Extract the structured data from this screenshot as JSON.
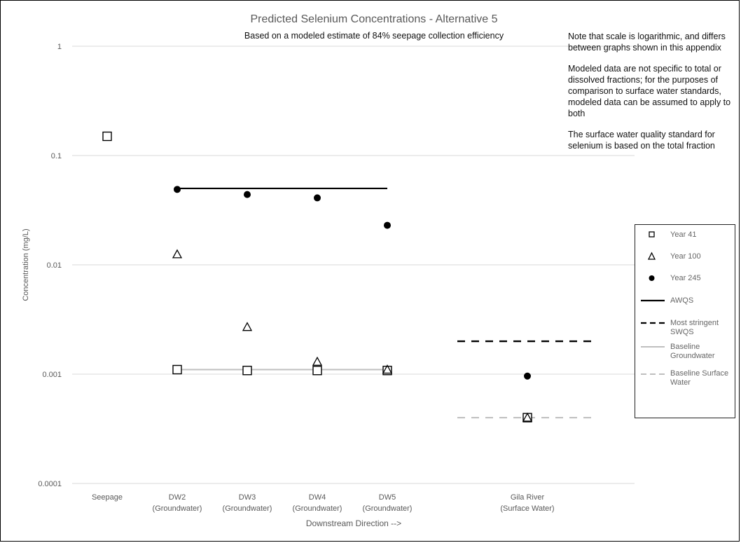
{
  "chart_data": {
    "type": "scatter",
    "title": "Predicted Selenium Concentrations - Alternative 5",
    "subtitle": "Based on a modeled estimate of 84% seepage collection efficiency",
    "xlabel": "Downstream Direction -->",
    "ylabel": "Concentration (mg/L)",
    "yscale": "log",
    "ylim": [
      0.0001,
      1
    ],
    "yticks": [
      "1",
      "0.1",
      "0.01",
      "0.001",
      "0.0001"
    ],
    "grid": "horizontal",
    "legend_position": "right",
    "categories": [
      {
        "line1": "Seepage",
        "line2": ""
      },
      {
        "line1": "DW2",
        "line2": "(Groundwater)"
      },
      {
        "line1": "DW3",
        "line2": "(Groundwater)"
      },
      {
        "line1": "DW4",
        "line2": "(Groundwater)"
      },
      {
        "line1": "DW5",
        "line2": "(Groundwater)"
      },
      {
        "line1": "Gila River",
        "line2": "(Surface Water)"
      }
    ],
    "category_positions": [
      0,
      1,
      2,
      3,
      4,
      6
    ],
    "series": [
      {
        "name": "Year 41",
        "marker": "square-open",
        "values": [
          0.15,
          0.0011,
          0.00108,
          0.00108,
          0.00108,
          0.0004
        ]
      },
      {
        "name": "Year 100",
        "marker": "triangle-open",
        "values": [
          null,
          0.0125,
          0.0027,
          0.0013,
          0.0011,
          0.0004
        ]
      },
      {
        "name": "Year 245",
        "marker": "circle-filled",
        "values": [
          null,
          0.049,
          0.044,
          0.041,
          0.023,
          0.00096
        ]
      }
    ],
    "reference_lines": [
      {
        "name": "AWQS",
        "value": 0.05,
        "from": 1,
        "to": 4,
        "style": "solid-black"
      },
      {
        "name": "Most stringent SWQS",
        "value": 0.002,
        "from": 5,
        "to": 7,
        "style": "dashed-black"
      },
      {
        "name": "Baseline Groundwater",
        "value": 0.0011,
        "from": 1,
        "to": 4,
        "style": "solid-gray"
      },
      {
        "name": "Baseline Surface Water",
        "value": 0.0004,
        "from": 5,
        "to": 7,
        "style": "dashed-gray"
      }
    ],
    "colors": {
      "axis_text": "#595959",
      "grid": "#d9d9d9",
      "baseline": "#bfbfbf",
      "marker": "#000000"
    }
  },
  "notes": [
    "Note that scale is logarithmic, and differs between graphs shown in this appendix",
    "Modeled data are not specific to total or dissolved fractions; for the purposes of comparison to surface water standards, modeled data can be assumed to apply to both",
    "The surface water quality standard for selenium is based on the total fraction"
  ],
  "legend": {
    "items": [
      {
        "label": "Year 41",
        "symbol": "square-open"
      },
      {
        "label": "Year 100",
        "symbol": "triangle-open"
      },
      {
        "label": "Year 245",
        "symbol": "circle-filled"
      },
      {
        "label": "AWQS",
        "symbol": "solid-black"
      },
      {
        "label": "Most stringent SWQS",
        "symbol": "dashed-black"
      },
      {
        "label": "Baseline Groundwater",
        "symbol": "solid-gray"
      },
      {
        "label": "Baseline Surface Water",
        "symbol": "dashed-gray"
      }
    ]
  }
}
